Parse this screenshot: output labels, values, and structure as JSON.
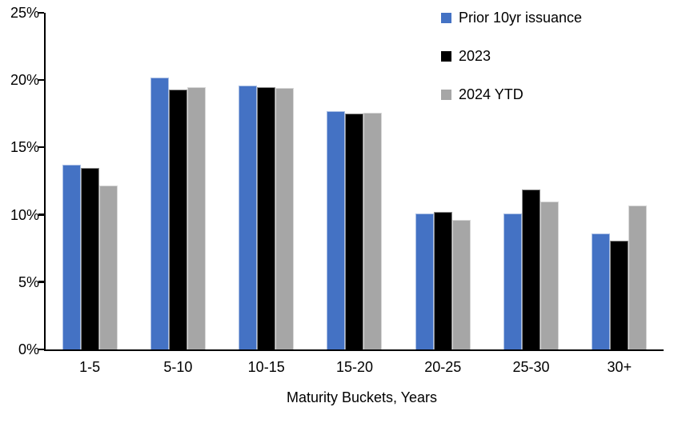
{
  "chart_data": {
    "type": "bar",
    "title": "",
    "xlabel": "Maturity Buckets, Years",
    "ylabel": "",
    "ylim": [
      0,
      25
    ],
    "y_tick_step": 5,
    "y_tick_labels": [
      "0%",
      "5%",
      "10%",
      "15%",
      "20%",
      "25%"
    ],
    "grid": false,
    "legend_position": "top-right",
    "categories": [
      "1-5",
      "5-10",
      "10-15",
      "15-20",
      "20-25",
      "25-30",
      "30+"
    ],
    "series": [
      {
        "name": "Prior 10yr issuance",
        "color": "#4472C4",
        "values": [
          13.7,
          20.2,
          19.6,
          17.7,
          10.1,
          10.1,
          8.6
        ]
      },
      {
        "name": "2023",
        "color": "#000000",
        "values": [
          13.5,
          19.3,
          19.5,
          17.5,
          10.2,
          11.9,
          8.1
        ]
      },
      {
        "name": "2024 YTD",
        "color": "#A6A6A6",
        "values": [
          12.2,
          19.5,
          19.4,
          17.6,
          9.6,
          11.0,
          10.7
        ]
      }
    ]
  }
}
